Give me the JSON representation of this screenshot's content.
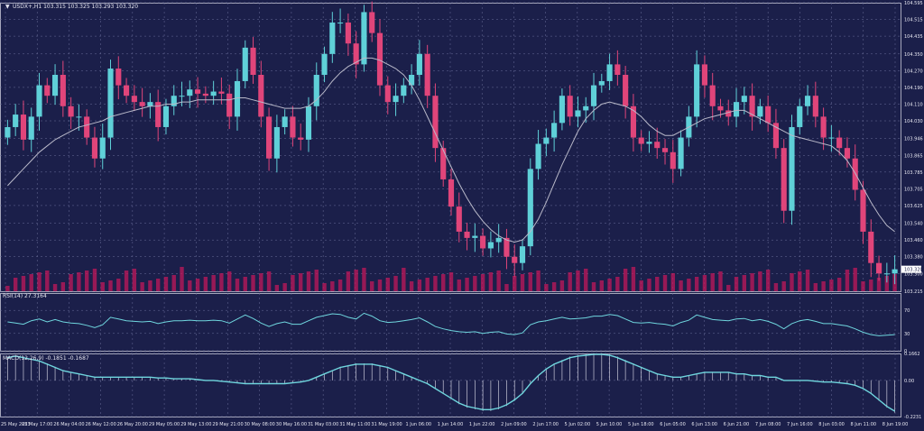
{
  "colors": {
    "background": "#1b1f4a",
    "grid": "#6b6f9a",
    "frame": "#c8c8d8",
    "text": "#e6e6f0",
    "bull": "#5fd0d8",
    "bear": "#e0457a",
    "ma": "#b9b9c9",
    "volume": "#c2185b",
    "oscillator": "#6fd6de",
    "histogram": "#c8c8d8"
  },
  "chart_data": [
    {
      "type": "candlestick",
      "symbol_label": "USDX+,H1  103.315 103.325 103.293 103.320",
      "y_ticks": [
        "104.595",
        "104.515",
        "104.435",
        "104.350",
        "104.270",
        "104.190",
        "104.110",
        "104.030",
        "103.946",
        "103.865",
        "103.785",
        "103.705",
        "103.625",
        "103.540",
        "103.460",
        "103.380",
        "103.300",
        "103.215"
      ],
      "y_tick_values": [
        104.595,
        104.515,
        104.435,
        104.35,
        104.27,
        104.19,
        104.11,
        104.03,
        103.946,
        103.865,
        103.785,
        103.705,
        103.625,
        103.54,
        103.46,
        103.38,
        103.3,
        103.215
      ],
      "ylim": [
        103.215,
        104.595
      ],
      "current_price": "103.320",
      "closes": [
        104.0,
        104.06,
        103.94,
        104.05,
        104.2,
        104.15,
        104.25,
        104.1,
        104.05,
        104.05,
        103.95,
        103.85,
        103.95,
        104.28,
        104.2,
        104.15,
        104.12,
        104.1,
        104.12,
        104.0,
        104.1,
        104.15,
        104.15,
        104.18,
        104.16,
        104.15,
        104.17,
        104.16,
        104.05,
        104.22,
        104.38,
        104.25,
        104.05,
        103.85,
        104.0,
        104.05,
        103.95,
        103.94,
        104.1,
        104.25,
        104.35,
        104.5,
        104.5,
        104.4,
        104.3,
        104.55,
        104.45,
        104.2,
        104.12,
        104.15,
        104.2,
        104.25,
        104.35,
        104.15,
        103.9,
        103.75,
        103.62,
        103.5,
        103.47,
        103.48,
        103.42,
        103.45,
        103.47,
        103.38,
        103.35,
        103.43,
        103.8,
        103.92,
        103.95,
        104.02,
        104.15,
        104.05,
        104.08,
        104.1,
        104.2,
        104.22,
        104.3,
        104.25,
        104.1,
        103.95,
        103.92,
        103.93,
        103.9,
        103.88,
        103.8,
        103.95,
        104.05,
        104.3,
        104.2,
        104.1,
        104.08,
        104.05,
        104.12,
        104.15,
        104.05,
        104.1,
        104.02,
        103.9,
        103.6,
        104.0,
        104.1,
        104.15,
        104.05,
        103.95,
        103.95,
        103.9,
        103.85,
        103.7,
        103.5,
        103.35,
        103.3,
        103.3,
        103.32
      ],
      "ma_values": [
        103.72,
        103.76,
        103.8,
        103.84,
        103.88,
        103.91,
        103.94,
        103.96,
        103.98,
        104.0,
        104.01,
        104.02,
        104.03,
        104.05,
        104.06,
        104.07,
        104.08,
        104.09,
        104.1,
        104.1,
        104.11,
        104.11,
        104.12,
        104.12,
        104.13,
        104.13,
        104.13,
        104.13,
        104.13,
        104.14,
        104.14,
        104.13,
        104.12,
        104.11,
        104.1,
        104.09,
        104.09,
        104.09,
        104.1,
        104.13,
        104.17,
        104.22,
        104.26,
        104.29,
        104.31,
        104.33,
        104.33,
        104.32,
        104.3,
        104.28,
        104.25,
        104.2,
        104.13,
        104.05,
        103.97,
        103.89,
        103.81,
        103.73,
        103.66,
        103.6,
        103.55,
        103.51,
        103.48,
        103.46,
        103.45,
        103.46,
        103.5,
        103.56,
        103.64,
        103.73,
        103.82,
        103.9,
        103.98,
        104.04,
        104.08,
        104.11,
        104.12,
        104.11,
        104.1,
        104.08,
        104.05,
        104.01,
        103.98,
        103.96,
        103.96,
        103.98,
        104.0,
        104.02,
        104.04,
        104.05,
        104.06,
        104.07,
        104.08,
        104.08,
        104.06,
        104.04,
        104.02,
        104.0,
        103.98,
        103.96,
        103.95,
        103.94,
        103.93,
        103.92,
        103.91,
        103.88,
        103.84,
        103.78,
        103.71,
        103.64,
        103.58,
        103.53,
        103.5
      ]
    },
    {
      "type": "line",
      "label": "RSI(14) 27.3164",
      "y_ticks": [
        "70",
        "30",
        "0"
      ],
      "y_tick_values": [
        70,
        30,
        0
      ],
      "ylim": [
        0,
        100
      ],
      "values": [
        50,
        48,
        46,
        52,
        55,
        50,
        54,
        50,
        48,
        47,
        44,
        40,
        45,
        58,
        55,
        52,
        51,
        50,
        51,
        47,
        50,
        52,
        52,
        53,
        52,
        52,
        53,
        52,
        48,
        55,
        62,
        56,
        48,
        42,
        47,
        50,
        46,
        46,
        52,
        58,
        61,
        64,
        63,
        58,
        55,
        65,
        60,
        52,
        49,
        50,
        52,
        54,
        57,
        50,
        42,
        38,
        35,
        33,
        32,
        33,
        30,
        32,
        33,
        29,
        28,
        31,
        45,
        50,
        52,
        55,
        58,
        55,
        56,
        57,
        60,
        60,
        63,
        61,
        55,
        49,
        48,
        49,
        47,
        46,
        43,
        49,
        53,
        62,
        58,
        54,
        53,
        52,
        55,
        56,
        52,
        54,
        51,
        46,
        38,
        47,
        52,
        54,
        51,
        47,
        47,
        45,
        43,
        38,
        32,
        28,
        26,
        27,
        28
      ]
    },
    {
      "type": "line",
      "label": "MACD(12,26,9) -0.1851 -0.1687",
      "y_ticks": [
        "0.1662",
        "0.00",
        "-0.2231"
      ],
      "y_tick_values": [
        0.1662,
        0.0,
        -0.2231
      ],
      "ylim": [
        -0.2231,
        0.1662
      ],
      "values": [
        0.14,
        0.15,
        0.14,
        0.13,
        0.12,
        0.1,
        0.08,
        0.06,
        0.05,
        0.04,
        0.03,
        0.02,
        0.02,
        0.02,
        0.02,
        0.02,
        0.02,
        0.02,
        0.02,
        0.015,
        0.015,
        0.01,
        0.01,
        0.01,
        0.005,
        0.0,
        0.0,
        -0.005,
        -0.01,
        -0.015,
        -0.02,
        -0.02,
        -0.02,
        -0.02,
        -0.02,
        -0.02,
        -0.015,
        -0.01,
        0.0,
        0.02,
        0.04,
        0.06,
        0.08,
        0.09,
        0.1,
        0.1,
        0.1,
        0.09,
        0.08,
        0.06,
        0.04,
        0.02,
        0.0,
        -0.02,
        -0.05,
        -0.08,
        -0.11,
        -0.14,
        -0.16,
        -0.17,
        -0.18,
        -0.18,
        -0.17,
        -0.15,
        -0.12,
        -0.08,
        -0.02,
        0.03,
        0.07,
        0.1,
        0.12,
        0.14,
        0.15,
        0.155,
        0.16,
        0.16,
        0.155,
        0.14,
        0.12,
        0.1,
        0.08,
        0.06,
        0.04,
        0.03,
        0.02,
        0.02,
        0.03,
        0.04,
        0.05,
        0.05,
        0.05,
        0.05,
        0.04,
        0.04,
        0.03,
        0.03,
        0.02,
        0.02,
        0.0,
        0.0,
        0.0,
        0.0,
        -0.005,
        -0.01,
        -0.01,
        -0.015,
        -0.02,
        -0.03,
        -0.05,
        -0.08,
        -0.12,
        -0.16,
        -0.19
      ]
    }
  ],
  "x_axis": {
    "labels": [
      "25 May 2023",
      "25 May 17:00",
      "26 May 04:00",
      "26 May 12:00",
      "26 May 20:00",
      "29 May 05:00",
      "29 May 13:00",
      "29 May 21:00",
      "30 May 08:00",
      "30 May 16:00",
      "31 May 03:00",
      "31 May 11:00",
      "31 May 19:00",
      "1 Jun 06:00",
      "1 Jun 14:00",
      "1 Jun 22:00",
      "2 Jun 09:00",
      "2 Jun 17:00",
      "5 Jun 02:00",
      "5 Jun 10:00",
      "5 Jun 18:00",
      "6 Jun 05:00",
      "6 Jun 13:00",
      "6 Jun 21:00",
      "7 Jun 08:00",
      "7 Jun 16:00",
      "8 Jun 03:00",
      "8 Jun 11:00",
      "8 Jun 19:00"
    ]
  }
}
